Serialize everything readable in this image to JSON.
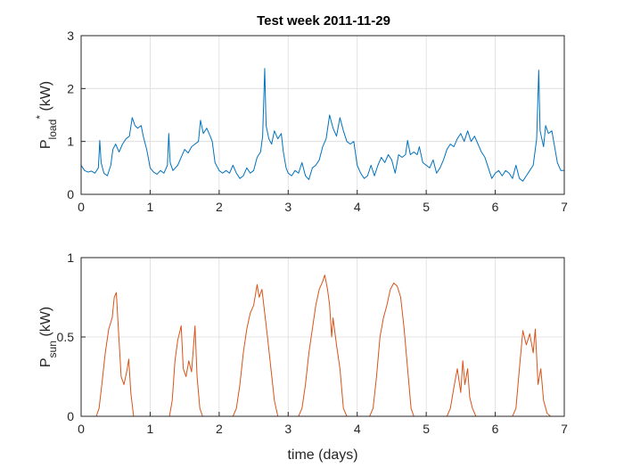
{
  "chart_data": [
    {
      "type": "line",
      "title": "Test week 2011-11-29",
      "ylabel": {
        "base": "P",
        "sub": "load",
        "sup": "*",
        "unit": " (kW)"
      },
      "xlabel": "",
      "xlim": [
        0,
        7
      ],
      "ylim": [
        0,
        3
      ],
      "xticks": [
        "0",
        "1",
        "2",
        "3",
        "4",
        "5",
        "6",
        "7"
      ],
      "yticks": [
        "0",
        "1",
        "2",
        "3"
      ],
      "grid": true,
      "color": "#0072BD",
      "series": [
        {
          "values": [
            [
              0.0,
              0.55
            ],
            [
              0.05,
              0.45
            ],
            [
              0.1,
              0.42
            ],
            [
              0.15,
              0.44
            ],
            [
              0.2,
              0.4
            ],
            [
              0.25,
              0.5
            ],
            [
              0.27,
              1.02
            ],
            [
              0.29,
              0.6
            ],
            [
              0.33,
              0.4
            ],
            [
              0.38,
              0.35
            ],
            [
              0.43,
              0.55
            ],
            [
              0.46,
              0.85
            ],
            [
              0.5,
              0.95
            ],
            [
              0.55,
              0.8
            ],
            [
              0.6,
              0.95
            ],
            [
              0.65,
              1.05
            ],
            [
              0.7,
              1.1
            ],
            [
              0.74,
              1.45
            ],
            [
              0.78,
              1.3
            ],
            [
              0.82,
              1.25
            ],
            [
              0.87,
              1.3
            ],
            [
              0.9,
              1.1
            ],
            [
              0.95,
              0.85
            ],
            [
              1.0,
              0.5
            ],
            [
              1.05,
              0.42
            ],
            [
              1.1,
              0.38
            ],
            [
              1.15,
              0.45
            ],
            [
              1.2,
              0.4
            ],
            [
              1.25,
              0.55
            ],
            [
              1.27,
              1.15
            ],
            [
              1.29,
              0.6
            ],
            [
              1.33,
              0.45
            ],
            [
              1.4,
              0.55
            ],
            [
              1.45,
              0.7
            ],
            [
              1.5,
              0.85
            ],
            [
              1.55,
              0.78
            ],
            [
              1.6,
              0.9
            ],
            [
              1.65,
              0.95
            ],
            [
              1.7,
              1.0
            ],
            [
              1.73,
              1.4
            ],
            [
              1.77,
              1.15
            ],
            [
              1.82,
              1.25
            ],
            [
              1.87,
              1.1
            ],
            [
              1.9,
              1.0
            ],
            [
              1.94,
              0.6
            ],
            [
              2.0,
              0.45
            ],
            [
              2.05,
              0.4
            ],
            [
              2.1,
              0.45
            ],
            [
              2.15,
              0.4
            ],
            [
              2.2,
              0.55
            ],
            [
              2.25,
              0.4
            ],
            [
              2.3,
              0.3
            ],
            [
              2.35,
              0.35
            ],
            [
              2.4,
              0.5
            ],
            [
              2.45,
              0.4
            ],
            [
              2.5,
              0.45
            ],
            [
              2.55,
              0.7
            ],
            [
              2.6,
              0.8
            ],
            [
              2.63,
              1.1
            ],
            [
              2.66,
              2.38
            ],
            [
              2.68,
              1.3
            ],
            [
              2.72,
              1.05
            ],
            [
              2.76,
              0.95
            ],
            [
              2.8,
              1.2
            ],
            [
              2.85,
              1.05
            ],
            [
              2.9,
              1.15
            ],
            [
              2.93,
              0.8
            ],
            [
              2.97,
              0.5
            ],
            [
              3.0,
              0.4
            ],
            [
              3.05,
              0.35
            ],
            [
              3.1,
              0.45
            ],
            [
              3.15,
              0.4
            ],
            [
              3.2,
              0.6
            ],
            [
              3.25,
              0.35
            ],
            [
              3.3,
              0.28
            ],
            [
              3.35,
              0.5
            ],
            [
              3.4,
              0.55
            ],
            [
              3.45,
              0.65
            ],
            [
              3.5,
              0.9
            ],
            [
              3.55,
              1.05
            ],
            [
              3.6,
              1.5
            ],
            [
              3.65,
              1.25
            ],
            [
              3.7,
              1.1
            ],
            [
              3.75,
              1.45
            ],
            [
              3.8,
              1.2
            ],
            [
              3.85,
              1.0
            ],
            [
              3.9,
              0.95
            ],
            [
              3.95,
              1.0
            ],
            [
              4.0,
              0.55
            ],
            [
              4.05,
              0.4
            ],
            [
              4.1,
              0.3
            ],
            [
              4.15,
              0.35
            ],
            [
              4.2,
              0.55
            ],
            [
              4.25,
              0.35
            ],
            [
              4.3,
              0.55
            ],
            [
              4.35,
              0.7
            ],
            [
              4.4,
              0.6
            ],
            [
              4.45,
              0.75
            ],
            [
              4.5,
              0.65
            ],
            [
              4.55,
              0.4
            ],
            [
              4.6,
              0.75
            ],
            [
              4.65,
              0.7
            ],
            [
              4.7,
              0.75
            ],
            [
              4.73,
              1.02
            ],
            [
              4.77,
              0.75
            ],
            [
              4.82,
              0.8
            ],
            [
              4.87,
              0.75
            ],
            [
              4.9,
              0.9
            ],
            [
              4.95,
              0.6
            ],
            [
              5.0,
              0.55
            ],
            [
              5.05,
              0.5
            ],
            [
              5.1,
              0.65
            ],
            [
              5.15,
              0.4
            ],
            [
              5.2,
              0.5
            ],
            [
              5.25,
              0.65
            ],
            [
              5.3,
              0.85
            ],
            [
              5.35,
              0.95
            ],
            [
              5.4,
              0.9
            ],
            [
              5.45,
              1.05
            ],
            [
              5.5,
              1.15
            ],
            [
              5.55,
              1.0
            ],
            [
              5.6,
              1.2
            ],
            [
              5.65,
              1.0
            ],
            [
              5.7,
              1.1
            ],
            [
              5.75,
              0.95
            ],
            [
              5.8,
              0.8
            ],
            [
              5.85,
              0.7
            ],
            [
              5.9,
              0.5
            ],
            [
              5.95,
              0.3
            ],
            [
              6.0,
              0.4
            ],
            [
              6.05,
              0.45
            ],
            [
              6.1,
              0.35
            ],
            [
              6.15,
              0.45
            ],
            [
              6.2,
              0.4
            ],
            [
              6.25,
              0.3
            ],
            [
              6.3,
              0.55
            ],
            [
              6.35,
              0.3
            ],
            [
              6.4,
              0.25
            ],
            [
              6.45,
              0.35
            ],
            [
              6.5,
              0.45
            ],
            [
              6.55,
              0.55
            ],
            [
              6.6,
              1.05
            ],
            [
              6.63,
              2.35
            ],
            [
              6.65,
              1.2
            ],
            [
              6.7,
              0.9
            ],
            [
              6.73,
              1.3
            ],
            [
              6.77,
              1.15
            ],
            [
              6.82,
              1.2
            ],
            [
              6.86,
              0.9
            ],
            [
              6.9,
              0.6
            ],
            [
              6.95,
              0.45
            ],
            [
              7.0,
              0.45
            ]
          ]
        }
      ]
    },
    {
      "type": "line",
      "title": "",
      "ylabel": {
        "base": "P",
        "sub": "sun",
        "sup": "",
        "unit": " (kW)"
      },
      "xlabel": "time (days)",
      "xlim": [
        0,
        7
      ],
      "ylim": [
        0,
        1
      ],
      "xticks": [
        "0",
        "1",
        "2",
        "3",
        "4",
        "5",
        "6",
        "7"
      ],
      "yticks": [
        "0",
        "0.5",
        "1"
      ],
      "grid": true,
      "color": "#D95319",
      "series": [
        {
          "values": [
            [
              0.0,
              0.0
            ],
            [
              0.22,
              0.0
            ],
            [
              0.26,
              0.05
            ],
            [
              0.3,
              0.2
            ],
            [
              0.35,
              0.4
            ],
            [
              0.4,
              0.55
            ],
            [
              0.45,
              0.62
            ],
            [
              0.48,
              0.75
            ],
            [
              0.51,
              0.78
            ],
            [
              0.54,
              0.55
            ],
            [
              0.58,
              0.25
            ],
            [
              0.62,
              0.2
            ],
            [
              0.66,
              0.28
            ],
            [
              0.69,
              0.36
            ],
            [
              0.72,
              0.15
            ],
            [
              0.76,
              0.0
            ],
            [
              1.0,
              0.0
            ],
            [
              1.28,
              0.0
            ],
            [
              1.32,
              0.1
            ],
            [
              1.36,
              0.35
            ],
            [
              1.4,
              0.48
            ],
            [
              1.45,
              0.57
            ],
            [
              1.48,
              0.3
            ],
            [
              1.52,
              0.25
            ],
            [
              1.56,
              0.35
            ],
            [
              1.6,
              0.28
            ],
            [
              1.63,
              0.45
            ],
            [
              1.65,
              0.57
            ],
            [
              1.68,
              0.25
            ],
            [
              1.72,
              0.05
            ],
            [
              1.76,
              0.0
            ],
            [
              2.0,
              0.0
            ],
            [
              2.2,
              0.0
            ],
            [
              2.25,
              0.05
            ],
            [
              2.3,
              0.2
            ],
            [
              2.35,
              0.4
            ],
            [
              2.4,
              0.55
            ],
            [
              2.45,
              0.65
            ],
            [
              2.5,
              0.7
            ],
            [
              2.55,
              0.83
            ],
            [
              2.58,
              0.75
            ],
            [
              2.62,
              0.8
            ],
            [
              2.66,
              0.65
            ],
            [
              2.7,
              0.5
            ],
            [
              2.75,
              0.3
            ],
            [
              2.8,
              0.1
            ],
            [
              2.85,
              0.0
            ],
            [
              3.0,
              0.0
            ],
            [
              3.15,
              0.0
            ],
            [
              3.2,
              0.05
            ],
            [
              3.25,
              0.2
            ],
            [
              3.3,
              0.4
            ],
            [
              3.35,
              0.55
            ],
            [
              3.4,
              0.7
            ],
            [
              3.45,
              0.8
            ],
            [
              3.5,
              0.85
            ],
            [
              3.53,
              0.89
            ],
            [
              3.57,
              0.8
            ],
            [
              3.6,
              0.7
            ],
            [
              3.63,
              0.5
            ],
            [
              3.65,
              0.62
            ],
            [
              3.7,
              0.45
            ],
            [
              3.75,
              0.3
            ],
            [
              3.8,
              0.05
            ],
            [
              3.85,
              0.0
            ],
            [
              4.0,
              0.0
            ],
            [
              4.18,
              0.0
            ],
            [
              4.23,
              0.05
            ],
            [
              4.28,
              0.25
            ],
            [
              4.33,
              0.5
            ],
            [
              4.38,
              0.62
            ],
            [
              4.43,
              0.7
            ],
            [
              4.48,
              0.8
            ],
            [
              4.53,
              0.84
            ],
            [
              4.58,
              0.82
            ],
            [
              4.63,
              0.75
            ],
            [
              4.68,
              0.55
            ],
            [
              4.73,
              0.3
            ],
            [
              4.78,
              0.05
            ],
            [
              4.82,
              0.0
            ],
            [
              5.0,
              0.0
            ],
            [
              5.3,
              0.0
            ],
            [
              5.35,
              0.05
            ],
            [
              5.4,
              0.18
            ],
            [
              5.45,
              0.3
            ],
            [
              5.5,
              0.15
            ],
            [
              5.53,
              0.35
            ],
            [
              5.56,
              0.2
            ],
            [
              5.6,
              0.3
            ],
            [
              5.63,
              0.12
            ],
            [
              5.67,
              0.05
            ],
            [
              5.72,
              0.0
            ],
            [
              6.0,
              0.0
            ],
            [
              6.25,
              0.0
            ],
            [
              6.3,
              0.05
            ],
            [
              6.35,
              0.3
            ],
            [
              6.4,
              0.54
            ],
            [
              6.45,
              0.45
            ],
            [
              6.5,
              0.52
            ],
            [
              6.55,
              0.4
            ],
            [
              6.58,
              0.55
            ],
            [
              6.62,
              0.2
            ],
            [
              6.66,
              0.3
            ],
            [
              6.7,
              0.1
            ],
            [
              6.75,
              0.02
            ],
            [
              6.8,
              0.0
            ],
            [
              7.0,
              0.0
            ]
          ]
        }
      ]
    }
  ]
}
